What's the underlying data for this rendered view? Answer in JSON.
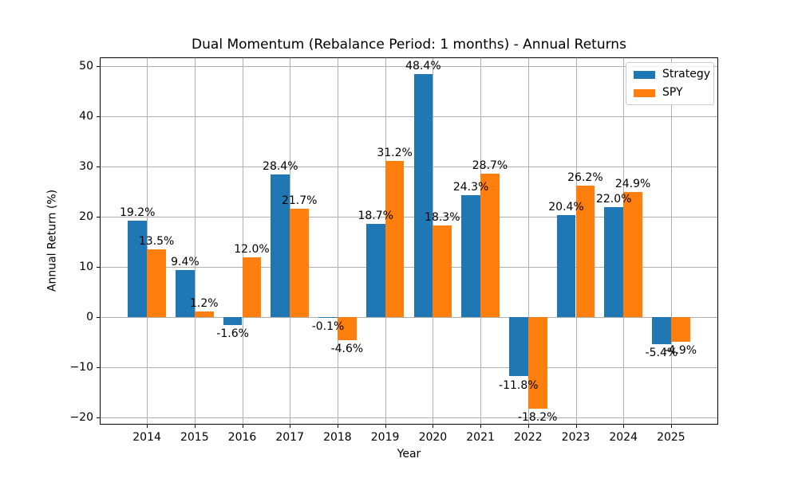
{
  "chart_data": {
    "type": "bar",
    "title": "Dual Momentum (Rebalance Period: 1 months) - Annual Returns",
    "xlabel": "Year",
    "ylabel": "Annual Return (%)",
    "categories": [
      "2014",
      "2015",
      "2016",
      "2017",
      "2018",
      "2019",
      "2020",
      "2021",
      "2022",
      "2023",
      "2024",
      "2025"
    ],
    "series": [
      {
        "name": "Strategy",
        "color": "#1f77b4",
        "values": [
          19.2,
          9.4,
          -1.6,
          28.4,
          -0.1,
          18.7,
          48.4,
          24.3,
          -11.8,
          20.4,
          22.0,
          -5.4
        ]
      },
      {
        "name": "SPY",
        "color": "#ff7f0e",
        "values": [
          13.5,
          1.2,
          12.0,
          21.7,
          -4.6,
          31.2,
          18.3,
          28.7,
          -18.2,
          26.2,
          24.9,
          -4.9
        ]
      }
    ],
    "bar_value_labels": [
      [
        "19.2%",
        "9.4%",
        "-1.6%",
        "28.4%",
        "-0.1%",
        "18.7%",
        "48.4%",
        "24.3%",
        "-11.8%",
        "20.4%",
        "22.0%",
        "-5.4%"
      ],
      [
        "13.5%",
        "1.2%",
        "12.0%",
        "21.7%",
        "-4.6%",
        "31.2%",
        "18.3%",
        "28.7%",
        "-18.2%",
        "26.2%",
        "24.9%",
        "-4.9%"
      ]
    ],
    "yticks": [
      -20,
      -10,
      0,
      10,
      20,
      30,
      40,
      50
    ],
    "ylim": [
      -21.4,
      51.8
    ],
    "xlim": [
      -0.99,
      11.99
    ],
    "bar_width_units": 0.4,
    "grid": true,
    "grid_color": "#b0b0b0",
    "spine_color": "#000000",
    "background": "#ffffff",
    "legend": {
      "position": "upper right",
      "entries": [
        "Strategy",
        "SPY"
      ]
    }
  }
}
